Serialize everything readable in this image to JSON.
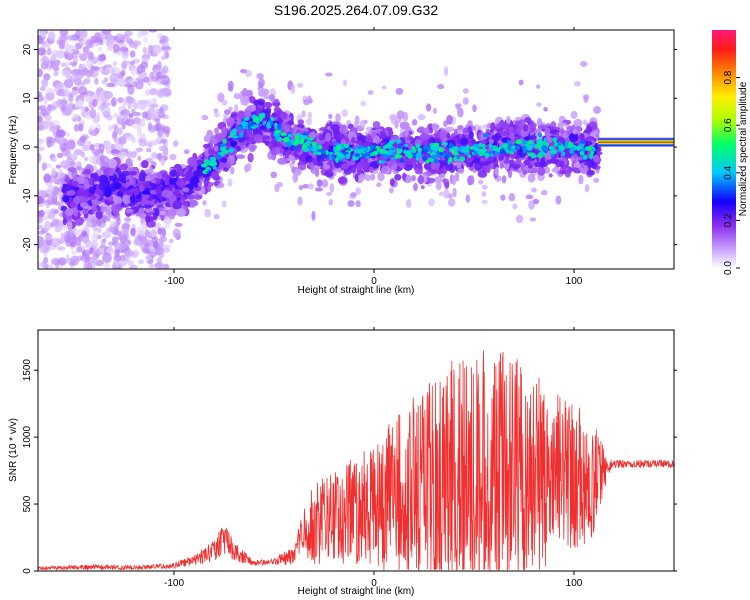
{
  "title": "S196.2025.264.07.09.G32",
  "chart_data": [
    {
      "type": "heatmap",
      "xlabel": "Height of straight line (km)",
      "ylabel": "Frequency (Hz)",
      "xlim": [
        -168,
        150
      ],
      "ylim": [
        -25,
        24
      ],
      "xticks": [
        -100,
        0,
        100
      ],
      "yticks": [
        -20,
        -10,
        0,
        10,
        20
      ],
      "colorbar": {
        "label": "Normalized spectral amplitude",
        "range": [
          0,
          1
        ],
        "ticks": [
          "0.0",
          "0.2",
          "0.4",
          "0.6",
          "0.8"
        ],
        "colors": [
          "#ffffff",
          "#c9a6ff",
          "#7a1cf0",
          "#1400ff",
          "#00c8ff",
          "#00ff66",
          "#aaff00",
          "#ffee00",
          "#ff8800",
          "#ff1a1a",
          "#ff1a7a"
        ]
      },
      "ridge": {
        "x": [
          -150,
          -130,
          -110,
          -95,
          -80,
          -65,
          -55,
          -45,
          -30,
          -15,
          0,
          20,
          40,
          60,
          80,
          100,
          112
        ],
        "y": [
          -10,
          -8,
          -10,
          -8,
          -3,
          4,
          6,
          2,
          0,
          -1,
          -1,
          -1,
          -1,
          0,
          0,
          0,
          -1
        ]
      },
      "band": {
        "x_start": 112,
        "x_end": 150,
        "y": 1,
        "amplitude": 1.0
      }
    },
    {
      "type": "line",
      "xlabel": "Height of straight line (km)",
      "ylabel": "SNR (10 * v/v)",
      "xlim": [
        -168,
        150
      ],
      "ylim": [
        0,
        1800
      ],
      "xticks": [
        -100,
        0,
        100
      ],
      "yticks": [
        0,
        500,
        1000,
        1500
      ],
      "color": "#f03030",
      "envelope": {
        "x": [
          -168,
          -140,
          -120,
          -100,
          -90,
          -80,
          -75,
          -70,
          -60,
          -50,
          -40,
          -35,
          -30,
          -20,
          -10,
          0,
          10,
          20,
          30,
          40,
          50,
          60,
          70,
          80,
          90,
          100,
          110,
          117,
          120,
          150
        ],
        "base": [
          20,
          30,
          25,
          40,
          80,
          150,
          250,
          150,
          60,
          70,
          120,
          300,
          350,
          400,
          450,
          500,
          550,
          600,
          650,
          700,
          700,
          720,
          720,
          730,
          720,
          700,
          700,
          780,
          800,
          800
        ],
        "spread": [
          10,
          20,
          15,
          20,
          40,
          80,
          120,
          80,
          20,
          20,
          80,
          200,
          300,
          350,
          400,
          450,
          600,
          700,
          800,
          900,
          950,
          950,
          900,
          800,
          650,
          550,
          450,
          60,
          30,
          30
        ]
      }
    }
  ]
}
